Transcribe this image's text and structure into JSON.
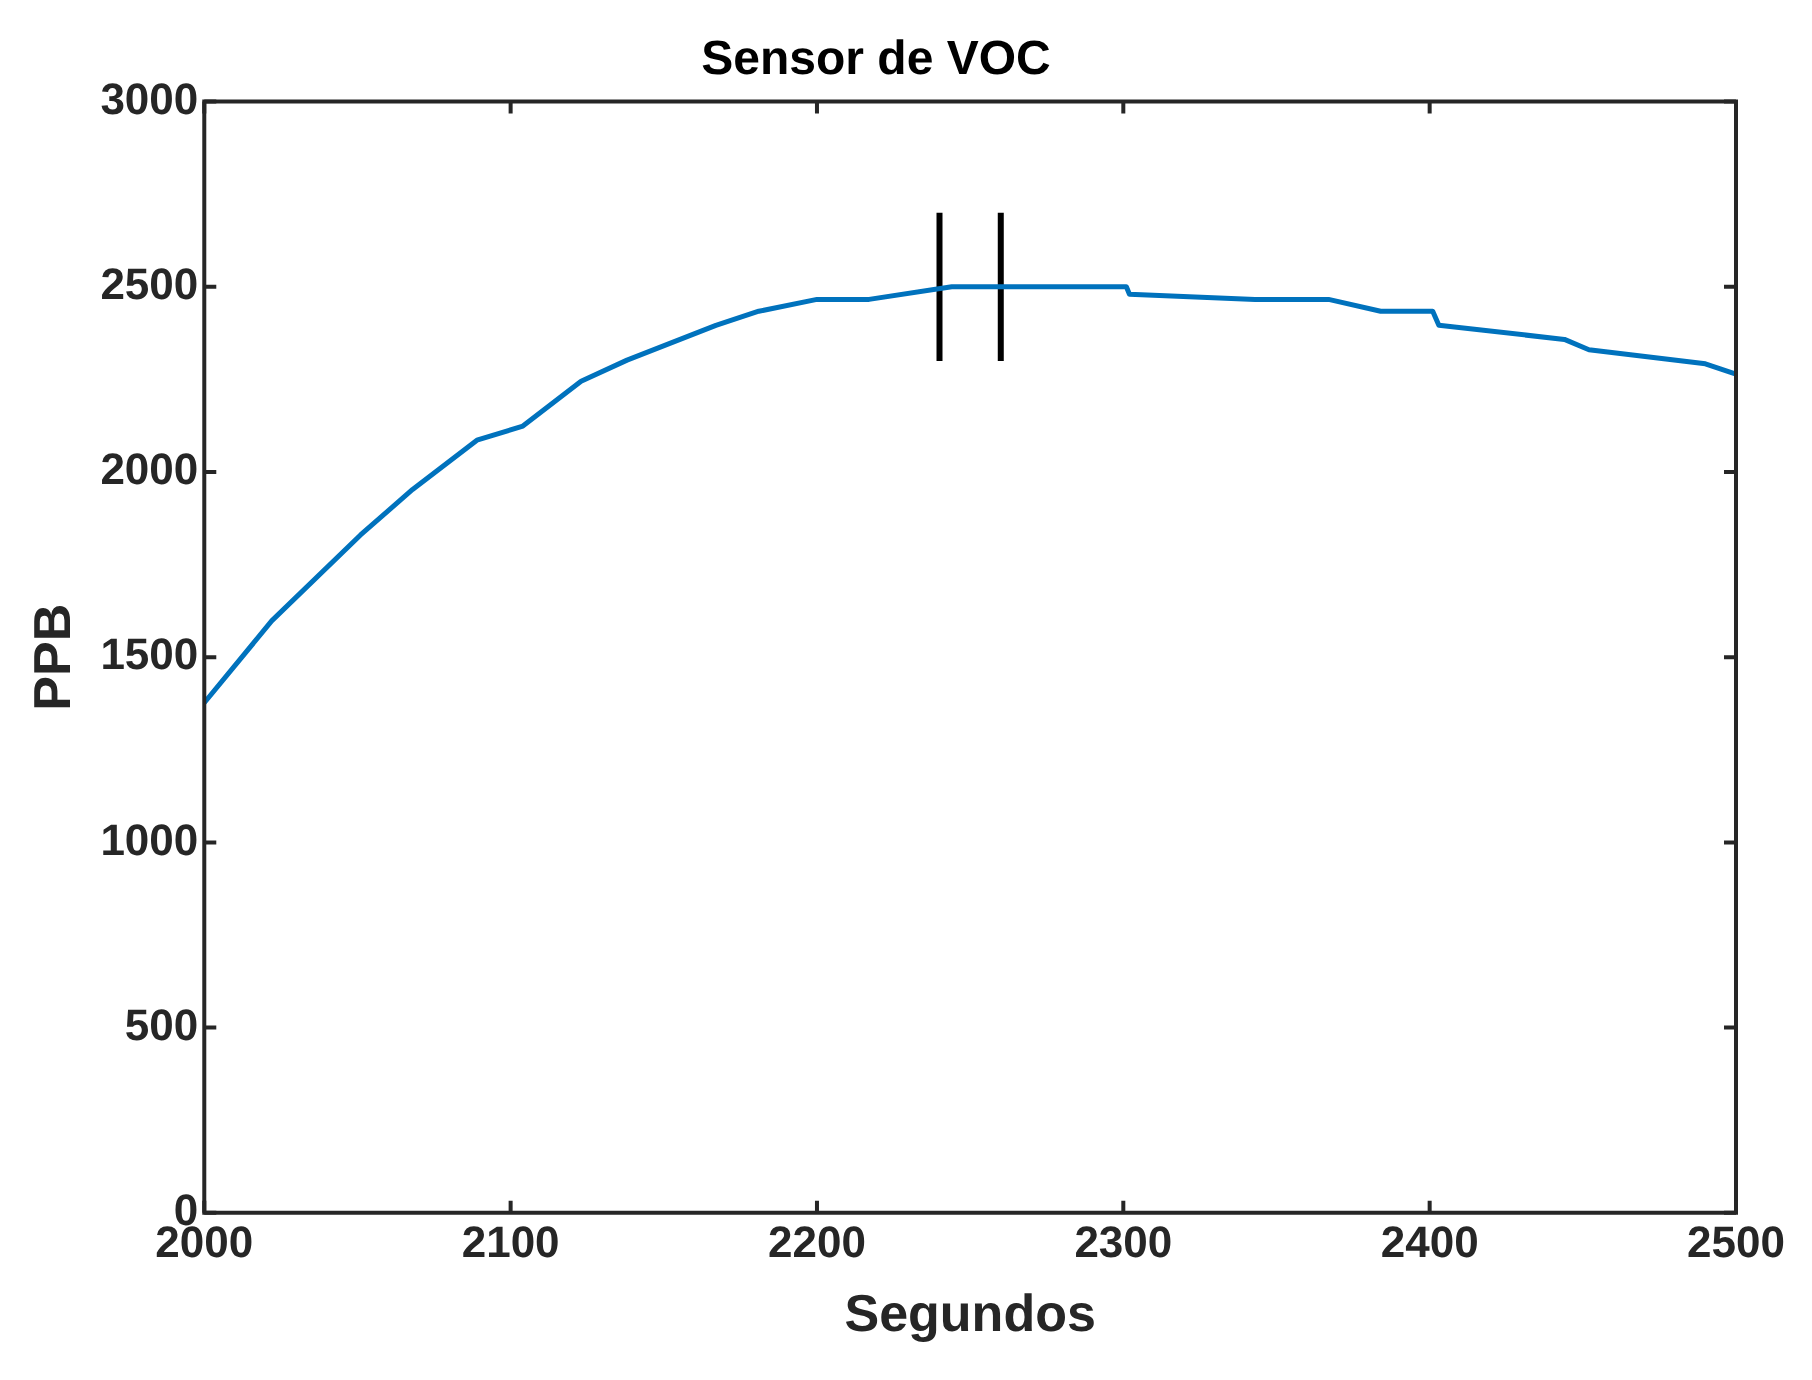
{
  "chart_data": {
    "type": "line",
    "title": "Sensor de VOC",
    "xlabel": "Segundos",
    "ylabel": "PPB",
    "xlim": [
      2000,
      2500
    ],
    "xticks": [
      2000,
      2100,
      2200,
      2300,
      2400,
      2500
    ],
    "ylim": [
      0,
      3000
    ],
    "yticks": [
      0,
      500,
      1000,
      1500,
      2000,
      2500,
      3000
    ],
    "grid": false,
    "legend": false,
    "marker": "none",
    "line_style": "solid",
    "series": [
      {
        "color": "#0072bd",
        "x": [
          2000,
          2022,
          2051,
          2068,
          2089,
          2104,
          2123,
          2138,
          2167,
          2181,
          2200,
          2217,
          2244,
          2301,
          2302,
          2343,
          2367,
          2384,
          2401,
          2403,
          2444,
          2452,
          2490,
          2500
        ],
        "values": [
          1377,
          1598,
          1830,
          1953,
          2086,
          2124,
          2245,
          2302,
          2396,
          2434,
          2466,
          2466,
          2500,
          2500,
          2480,
          2466,
          2466,
          2434,
          2434,
          2396,
          2358,
          2330,
          2292,
          2264
        ]
      },
      {
        "color": "#000000",
        "x": [
          2240,
          2240
        ],
        "values": [
          2300,
          2700
        ]
      },
      {
        "color": "#000000",
        "x": [
          2260,
          2260
        ],
        "values": [
          2300,
          2700
        ]
      }
    ]
  }
}
